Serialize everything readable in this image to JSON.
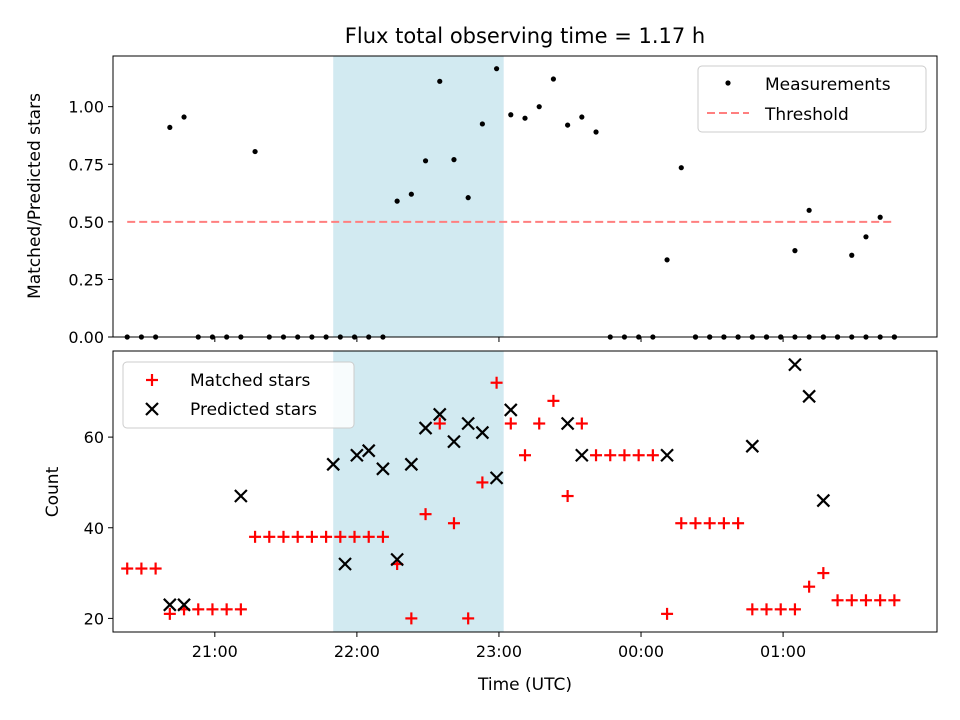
{
  "chart_data": [
    {
      "type": "scatter",
      "title": "Flux total observing time = 1.17 h",
      "xlabel": "",
      "ylabel": "Matched/Predicted stars",
      "ylim": [
        0,
        1.22
      ],
      "yticks": [
        0.0,
        0.25,
        0.5,
        0.75,
        1.0
      ],
      "ytick_labels": [
        "0.00",
        "0.25",
        "0.50",
        "0.75",
        "1.00"
      ],
      "xlim": [
        "20:17",
        "02:05"
      ],
      "highlight_span": [
        "21:50",
        "23:02"
      ],
      "highlight_color": "#add8e6",
      "legend_position": "top-right",
      "series": [
        {
          "name": "Measurements",
          "kind": "points",
          "color": "#000000",
          "x": [
            "20:23",
            "20:29",
            "20:35",
            "20:41",
            "20:47",
            "20:53",
            "20:59",
            "21:05",
            "21:11",
            "21:17",
            "21:23",
            "21:29",
            "21:35",
            "21:41",
            "21:47",
            "21:53",
            "21:59",
            "22:05",
            "22:11",
            "22:17",
            "22:23",
            "22:29",
            "22:35",
            "22:41",
            "22:47",
            "22:53",
            "22:59",
            "23:05",
            "23:11",
            "23:17",
            "23:23",
            "23:29",
            "23:35",
            "23:41",
            "23:47",
            "23:53",
            "23:59",
            "00:05",
            "00:11",
            "00:17",
            "00:23",
            "00:29",
            "00:35",
            "00:41",
            "00:47",
            "00:53",
            "00:59",
            "01:05",
            "01:11",
            "01:17",
            "01:23",
            "01:29",
            "01:35",
            "01:41",
            "01:47"
          ],
          "y": [
            0,
            0,
            0,
            0.91,
            0.955,
            0,
            0,
            0,
            0,
            0.805,
            0,
            0,
            0,
            0,
            0,
            0,
            0,
            0,
            0,
            0.59,
            0.62,
            0.765,
            1.11,
            0.77,
            0.605,
            0.925,
            1.165,
            0.965,
            0.95,
            1.0,
            1.12,
            0.92,
            0.955,
            0.89,
            0,
            0,
            0,
            0,
            0.335,
            0.735,
            0,
            0,
            0,
            0,
            0,
            0,
            0,
            0,
            0.55,
            0,
            0,
            0,
            0,
            0,
            0
          ]
        },
        {
          "name": "Threshold",
          "kind": "dashed-line",
          "color": "#ff7f7f",
          "x": [
            "20:23",
            "01:47"
          ],
          "y": [
            0.5,
            0.5
          ]
        }
      ],
      "extra_points": {
        "series": "Measurements",
        "x": [
          "00:23",
          "00:29",
          "00:35",
          "00:41",
          "00:47",
          "00:53",
          "00:59",
          "01:05",
          "01:11",
          "01:17",
          "01:23",
          "01:29",
          "01:35",
          "01:41",
          "01:47"
        ],
        "y": [
          0,
          0,
          0,
          0,
          0,
          0,
          0,
          0.375,
          0,
          0,
          0,
          0.355,
          0.435,
          0.52,
          0
        ]
      }
    },
    {
      "type": "scatter",
      "title": "",
      "xlabel": "Time (UTC)",
      "ylabel": "Count",
      "ylim": [
        17,
        79
      ],
      "yticks": [
        20,
        40,
        60
      ],
      "ytick_labels": [
        "20",
        "40",
        "60"
      ],
      "xlim": [
        "20:17",
        "02:05"
      ],
      "xticks": [
        "21:00",
        "22:00",
        "23:00",
        "00:00",
        "01:00"
      ],
      "xtick_labels": [
        "21:00",
        "22:00",
        "23:00",
        "00:00",
        "01:00"
      ],
      "highlight_span": [
        "21:50",
        "23:02"
      ],
      "highlight_color": "#add8e6",
      "legend_position": "top-left",
      "series": [
        {
          "name": "Matched stars",
          "marker": "+",
          "color": "#ff0000",
          "x": [
            "20:23",
            "20:29",
            "20:35",
            "20:41",
            "20:47",
            "20:53",
            "20:59",
            "21:05",
            "21:11",
            "21:17",
            "21:23",
            "21:29",
            "21:35",
            "21:41",
            "21:47",
            "21:53",
            "21:59",
            "22:05",
            "22:11",
            "22:17",
            "22:23",
            "22:29",
            "22:35",
            "22:41",
            "22:47",
            "22:53",
            "22:59",
            "23:05",
            "23:11",
            "23:17",
            "23:23",
            "23:29",
            "23:35",
            "23:41",
            "23:47",
            "23:53",
            "23:59",
            "00:05",
            "00:11",
            "00:17",
            "00:23",
            "00:29",
            "00:35",
            "00:41",
            "00:47",
            "00:53",
            "00:59",
            "01:05",
            "01:11",
            "01:17",
            "01:23",
            "01:29",
            "01:35",
            "01:41",
            "01:47"
          ],
          "y": [
            31,
            31,
            31,
            21,
            22,
            22,
            22,
            22,
            22,
            38,
            38,
            38,
            38,
            38,
            38,
            38,
            38,
            38,
            38,
            32,
            20,
            43,
            63,
            41,
            20,
            50,
            72,
            63,
            56,
            63,
            68,
            47,
            63,
            56,
            56,
            56,
            56,
            56,
            21,
            41,
            41,
            41,
            41,
            41,
            41,
            41,
            41,
            41,
            31,
            31,
            31,
            31,
            31,
            31,
            31
          ]
        },
        {
          "name": "Predicted stars",
          "marker": "x",
          "color": "#000000",
          "x": [
            "20:41",
            "20:47",
            "21:11",
            "21:50",
            "21:55",
            "22:00",
            "22:05",
            "22:11",
            "22:17",
            "22:23",
            "22:29",
            "22:35",
            "22:41",
            "22:47",
            "22:53",
            "22:59",
            "23:05",
            "23:29",
            "23:35",
            "00:11",
            "00:47",
            "01:05",
            "01:11",
            "01:17"
          ],
          "y": [
            23,
            23,
            47,
            54,
            32,
            56,
            57,
            53,
            33,
            54,
            62,
            65,
            59,
            63,
            61,
            51,
            66,
            63,
            56,
            56,
            58,
            76,
            69,
            46
          ]
        }
      ],
      "extra_points": {
        "series": "Matched stars",
        "x": [
          "00:47",
          "00:53",
          "00:59",
          "01:05",
          "01:11",
          "01:17",
          "01:23",
          "01:29",
          "01:35",
          "01:41",
          "01:47"
        ],
        "y": [
          22,
          22,
          22,
          22,
          27,
          30,
          24,
          24,
          24,
          24,
          24
        ]
      }
    }
  ]
}
